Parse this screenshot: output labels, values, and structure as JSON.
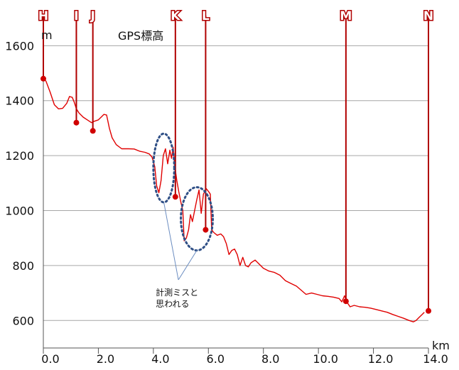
{
  "chart_data": {
    "type": "line",
    "title": "GPS標高",
    "ylabel": "m",
    "xlabel": "km",
    "xlim": [
      0,
      14
    ],
    "ylim": [
      500,
      1650
    ],
    "grid": true,
    "yticks": [
      600,
      800,
      1000,
      1200,
      1400,
      1600
    ],
    "xticks": [
      0,
      2,
      4,
      6,
      8,
      10,
      12,
      14
    ],
    "xtick_labels": [
      "0.0",
      "2.0",
      "4.0",
      "6.0",
      "8.0",
      "10.0",
      "12.0",
      "14.0"
    ],
    "series": [
      {
        "name": "GPS標高",
        "color": "#e00000",
        "points": [
          [
            0.0,
            1485
          ],
          [
            0.1,
            1470
          ],
          [
            0.25,
            1430
          ],
          [
            0.4,
            1385
          ],
          [
            0.55,
            1370
          ],
          [
            0.7,
            1372
          ],
          [
            0.85,
            1390
          ],
          [
            0.95,
            1415
          ],
          [
            1.05,
            1412
          ],
          [
            1.12,
            1395
          ],
          [
            1.2,
            1370
          ],
          [
            1.3,
            1355
          ],
          [
            1.45,
            1340
          ],
          [
            1.6,
            1330
          ],
          [
            1.75,
            1320
          ],
          [
            1.85,
            1325
          ],
          [
            2.0,
            1330
          ],
          [
            2.1,
            1340
          ],
          [
            2.2,
            1350
          ],
          [
            2.3,
            1348
          ],
          [
            2.4,
            1300
          ],
          [
            2.5,
            1265
          ],
          [
            2.65,
            1240
          ],
          [
            2.85,
            1225
          ],
          [
            3.1,
            1225
          ],
          [
            3.3,
            1224
          ],
          [
            3.5,
            1216
          ],
          [
            3.7,
            1212
          ],
          [
            3.85,
            1206
          ],
          [
            3.95,
            1195
          ],
          [
            4.05,
            1160
          ],
          [
            4.12,
            1090
          ],
          [
            4.2,
            1065
          ],
          [
            4.28,
            1110
          ],
          [
            4.36,
            1200
          ],
          [
            4.44,
            1225
          ],
          [
            4.52,
            1170
          ],
          [
            4.6,
            1220
          ],
          [
            4.66,
            1190
          ],
          [
            4.72,
            1230
          ],
          [
            4.78,
            1160
          ],
          [
            4.85,
            1110
          ],
          [
            4.92,
            1070
          ],
          [
            5.0,
            1030
          ],
          [
            5.07,
            1000
          ],
          [
            5.12,
            890
          ],
          [
            5.2,
            900
          ],
          [
            5.28,
            930
          ],
          [
            5.35,
            985
          ],
          [
            5.42,
            960
          ],
          [
            5.5,
            1000
          ],
          [
            5.58,
            1040
          ],
          [
            5.66,
            1075
          ],
          [
            5.74,
            990
          ],
          [
            5.82,
            1060
          ],
          [
            5.92,
            1080
          ],
          [
            6.0,
            1070
          ],
          [
            6.07,
            1060
          ],
          [
            6.12,
            930
          ],
          [
            6.2,
            920
          ],
          [
            6.32,
            910
          ],
          [
            6.45,
            915
          ],
          [
            6.55,
            905
          ],
          [
            6.65,
            880
          ],
          [
            6.75,
            840
          ],
          [
            6.85,
            855
          ],
          [
            6.95,
            860
          ],
          [
            7.05,
            840
          ],
          [
            7.15,
            800
          ],
          [
            7.25,
            830
          ],
          [
            7.35,
            800
          ],
          [
            7.45,
            795
          ],
          [
            7.55,
            810
          ],
          [
            7.7,
            820
          ],
          [
            7.85,
            805
          ],
          [
            8.0,
            790
          ],
          [
            8.2,
            780
          ],
          [
            8.4,
            775
          ],
          [
            8.6,
            765
          ],
          [
            8.8,
            745
          ],
          [
            9.0,
            735
          ],
          [
            9.2,
            725
          ],
          [
            9.4,
            708
          ],
          [
            9.55,
            695
          ],
          [
            9.75,
            700
          ],
          [
            9.95,
            695
          ],
          [
            10.15,
            690
          ],
          [
            10.35,
            688
          ],
          [
            10.55,
            685
          ],
          [
            10.75,
            680
          ],
          [
            10.85,
            668
          ],
          [
            10.95,
            690
          ],
          [
            11.05,
            665
          ],
          [
            11.15,
            650
          ],
          [
            11.3,
            655
          ],
          [
            11.5,
            650
          ],
          [
            11.7,
            648
          ],
          [
            11.9,
            645
          ],
          [
            12.1,
            640
          ],
          [
            12.3,
            635
          ],
          [
            12.5,
            630
          ],
          [
            12.7,
            622
          ],
          [
            12.9,
            615
          ],
          [
            13.1,
            608
          ],
          [
            13.3,
            600
          ],
          [
            13.45,
            595
          ],
          [
            13.55,
            600
          ],
          [
            13.65,
            610
          ],
          [
            13.75,
            620
          ],
          [
            13.85,
            630
          ]
        ]
      }
    ],
    "waypoints": [
      {
        "label": "H",
        "x": 0.0,
        "y": 1480
      },
      {
        "label": "I",
        "x": 1.2,
        "y": 1320
      },
      {
        "label": "J",
        "x": 1.8,
        "y": 1290
      },
      {
        "label": "K",
        "x": 4.8,
        "y": 1050
      },
      {
        "label": "L",
        "x": 5.9,
        "y": 930
      },
      {
        "label": "M",
        "x": 11.0,
        "y": 670
      },
      {
        "label": "N",
        "x": 14.0,
        "y": 635
      }
    ],
    "annotations": [
      {
        "text_lines": [
          "計測ミスと",
          "思われる"
        ],
        "x": 4.6,
        "y": 810
      }
    ],
    "ellipses": [
      {
        "cx": 4.38,
        "cy": 1155,
        "rx": 0.38,
        "ry": 125
      },
      {
        "cx": 5.58,
        "cy": 970,
        "rx": 0.58,
        "ry": 115
      }
    ]
  }
}
